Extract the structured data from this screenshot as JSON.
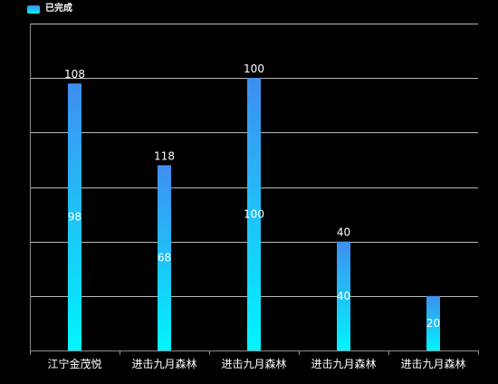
{
  "legend": {
    "label": "已完成"
  },
  "colors": {
    "background": "#000000",
    "bar_top": "#3f8ef0",
    "bar_bottom": "#00f5ff",
    "grid": "#b9b9b9",
    "axis": "#8c8c8c",
    "text": "#ffffff"
  },
  "chart_data": {
    "type": "bar",
    "categories": [
      "江宁金茂悦",
      "进击九月森林",
      "进击九月森林",
      "进击九月森林",
      "进击九月森林"
    ],
    "values": [
      98,
      68,
      100,
      40,
      20
    ],
    "top_labels": [
      "108",
      "118",
      "100",
      "40",
      ""
    ],
    "value_labels": [
      "98",
      "68",
      "100",
      "40",
      "20"
    ],
    "series": [
      {
        "name": "已完成",
        "values": [
          98,
          68,
          100,
          40,
          20
        ]
      }
    ],
    "ylim": [
      0,
      120
    ],
    "grid": true,
    "legend_position": "top-left",
    "title": "",
    "xlabel": "",
    "ylabel": ""
  }
}
